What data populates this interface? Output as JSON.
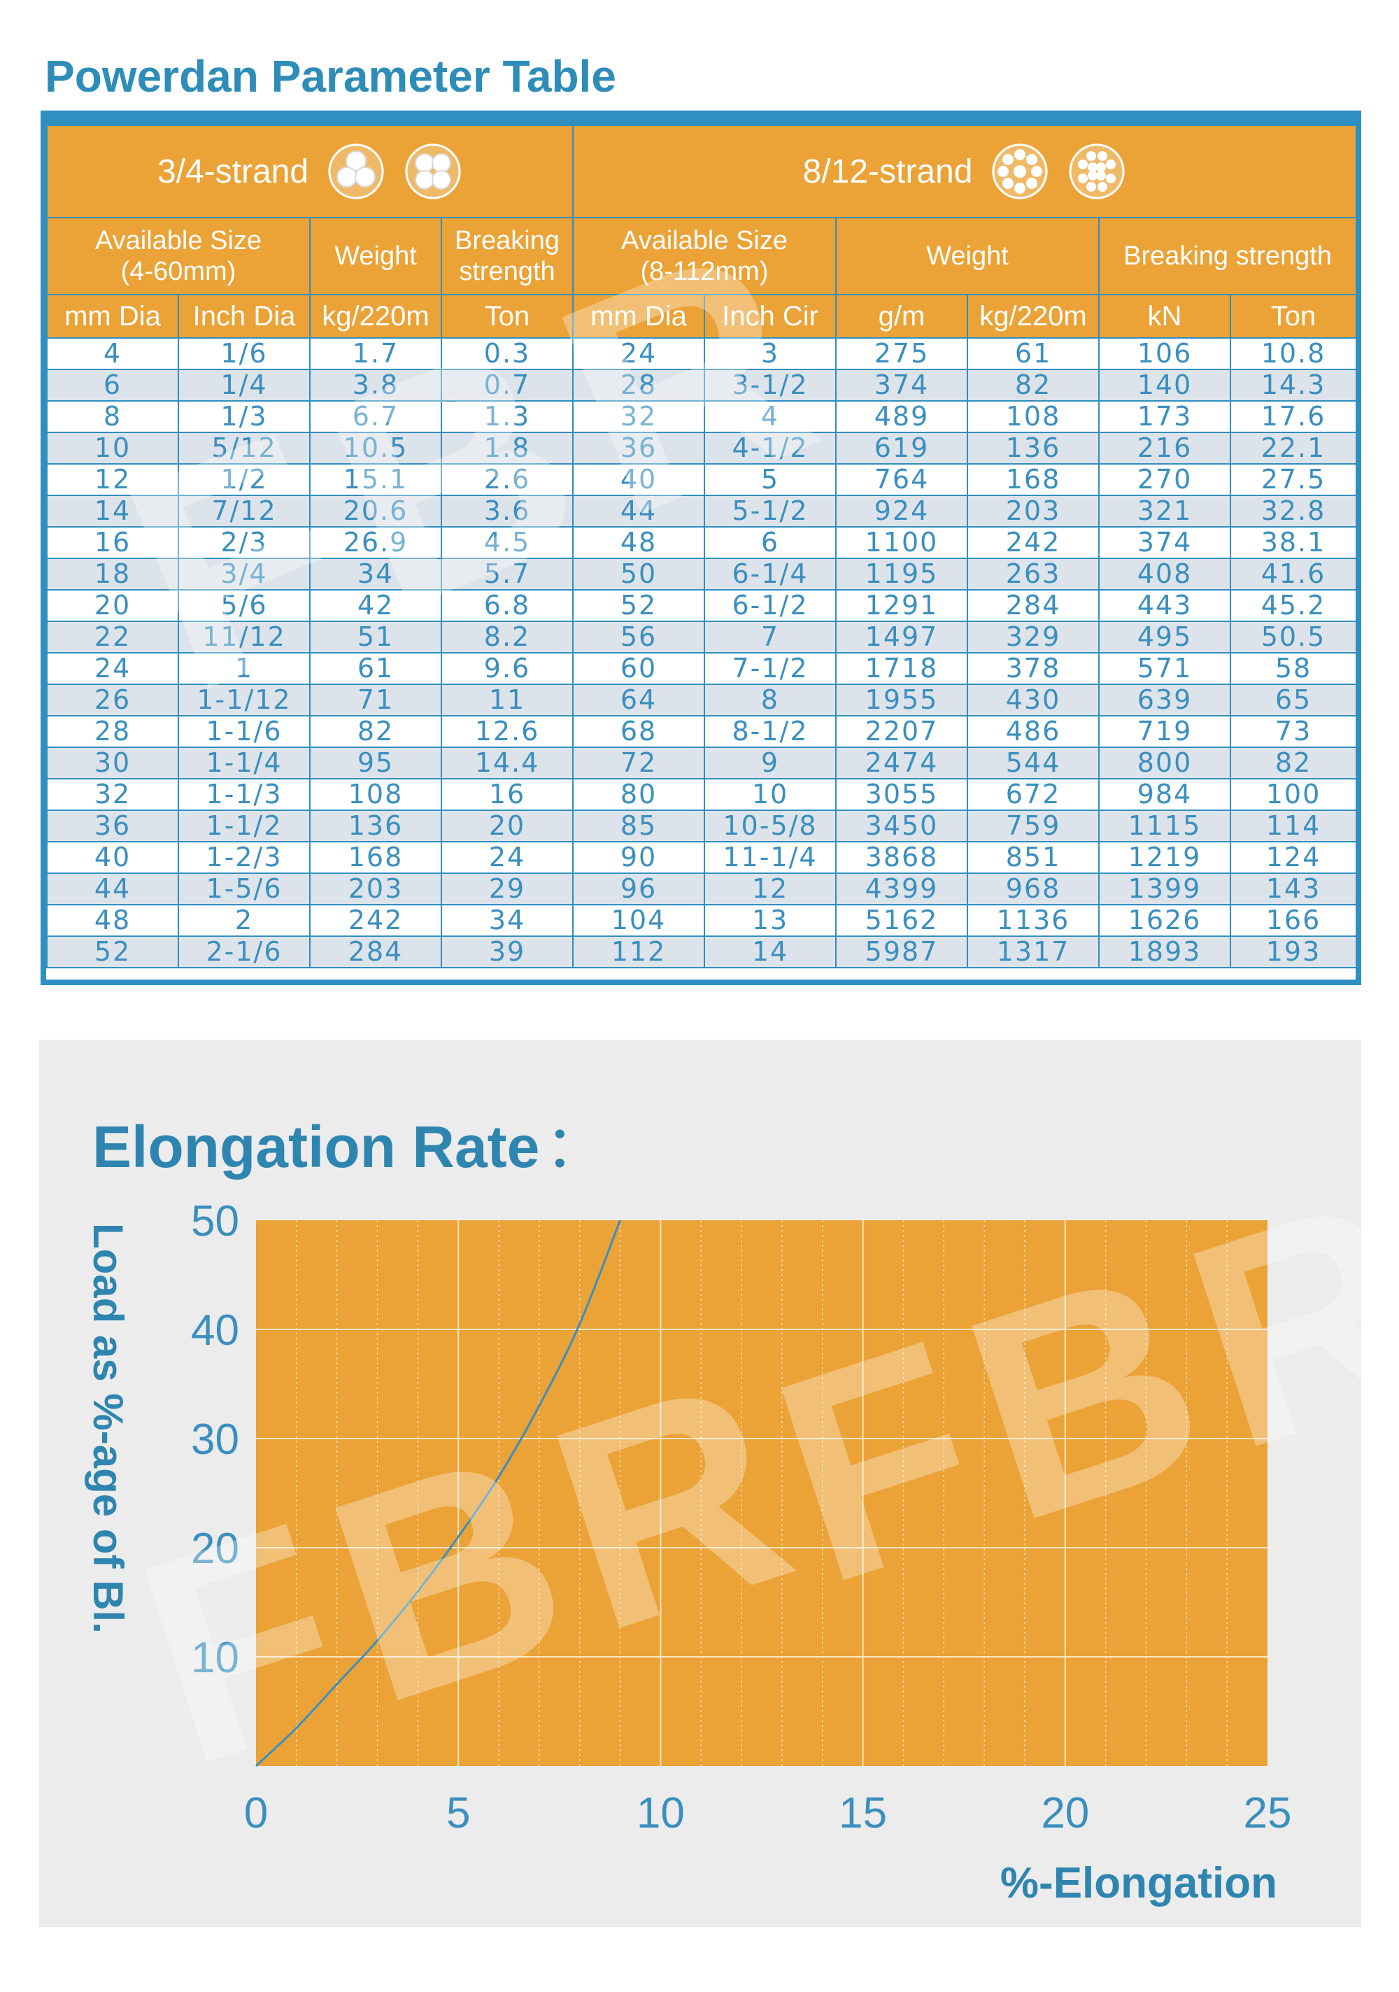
{
  "document": {
    "title": "Powerdan Parameter Table"
  },
  "table": {
    "group_left": "3/4-strand",
    "group_right": "8/12-strand",
    "subheaders": {
      "avail_size_left": "Available Size",
      "avail_size_left_range": "(4-60mm)",
      "weight_left": "Weight",
      "breaking_left": "Breaking strength",
      "avail_size_right": "Available Size",
      "avail_size_right_range": "(8-112mm)",
      "weight_right": "Weight",
      "breaking_right": "Breaking strength"
    },
    "units": [
      "mm Dia",
      "Inch Dia",
      "kg/220m",
      "Ton",
      "mm Dia",
      "Inch Cir",
      "g/m",
      "kg/220m",
      "kN",
      "Ton"
    ],
    "rows": [
      [
        "4",
        "1/6",
        "1.7",
        "0.3",
        "24",
        "3",
        "275",
        "61",
        "106",
        "10.8"
      ],
      [
        "6",
        "1/4",
        "3.8",
        "0.7",
        "28",
        "3-1/2",
        "374",
        "82",
        "140",
        "14.3"
      ],
      [
        "8",
        "1/3",
        "6.7",
        "1.3",
        "32",
        "4",
        "489",
        "108",
        "173",
        "17.6"
      ],
      [
        "10",
        "5/12",
        "10.5",
        "1.8",
        "36",
        "4-1/2",
        "619",
        "136",
        "216",
        "22.1"
      ],
      [
        "12",
        "1/2",
        "15.1",
        "2.6",
        "40",
        "5",
        "764",
        "168",
        "270",
        "27.5"
      ],
      [
        "14",
        "7/12",
        "20.6",
        "3.6",
        "44",
        "5-1/2",
        "924",
        "203",
        "321",
        "32.8"
      ],
      [
        "16",
        "2/3",
        "26.9",
        "4.5",
        "48",
        "6",
        "1100",
        "242",
        "374",
        "38.1"
      ],
      [
        "18",
        "3/4",
        "34",
        "5.7",
        "50",
        "6-1/4",
        "1195",
        "263",
        "408",
        "41.6"
      ],
      [
        "20",
        "5/6",
        "42",
        "6.8",
        "52",
        "6-1/2",
        "1291",
        "284",
        "443",
        "45.2"
      ],
      [
        "22",
        "11/12",
        "51",
        "8.2",
        "56",
        "7",
        "1497",
        "329",
        "495",
        "50.5"
      ],
      [
        "24",
        "1",
        "61",
        "9.6",
        "60",
        "7-1/2",
        "1718",
        "378",
        "571",
        "58"
      ],
      [
        "26",
        "1-1/12",
        "71",
        "11",
        "64",
        "8",
        "1955",
        "430",
        "639",
        "65"
      ],
      [
        "28",
        "1-1/6",
        "82",
        "12.6",
        "68",
        "8-1/2",
        "2207",
        "486",
        "719",
        "73"
      ],
      [
        "30",
        "1-1/4",
        "95",
        "14.4",
        "72",
        "9",
        "2474",
        "544",
        "800",
        "82"
      ],
      [
        "32",
        "1-1/3",
        "108",
        "16",
        "80",
        "10",
        "3055",
        "672",
        "984",
        "100"
      ],
      [
        "36",
        "1-1/2",
        "136",
        "20",
        "85",
        "10-5/8",
        "3450",
        "759",
        "1115",
        "114"
      ],
      [
        "40",
        "1-2/3",
        "168",
        "24",
        "90",
        "11-1/4",
        "3868",
        "851",
        "1219",
        "124"
      ],
      [
        "44",
        "1-5/6",
        "203",
        "29",
        "96",
        "12",
        "4399",
        "968",
        "1399",
        "143"
      ],
      [
        "48",
        "2",
        "242",
        "34",
        "104",
        "13",
        "5162",
        "1136",
        "1626",
        "166"
      ],
      [
        "52",
        "2-1/6",
        "284",
        "39",
        "112",
        "14",
        "5987",
        "1317",
        "1893",
        "193"
      ]
    ]
  },
  "watermark_text": "FBR",
  "colors": {
    "accent_blue": "#2e8db8",
    "header_orange": "#eba236",
    "chart_orange": "#eba236",
    "stripe": "#dde3ea"
  },
  "chart_data": {
    "type": "line",
    "title": "Elongation Rate",
    "title_suffix": "：",
    "xlabel": "%-Elongation",
    "ylabel": "Load as %-age of Bl.",
    "xlim": [
      0,
      25
    ],
    "ylim": [
      0,
      50
    ],
    "x_ticks": [
      "0",
      "5",
      "10",
      "15",
      "20",
      "25"
    ],
    "y_ticks": [
      "10",
      "20",
      "30",
      "40",
      "50"
    ],
    "grid": true,
    "series": [
      {
        "name": "Elongation",
        "x": [
          0,
          1,
          2,
          3,
          4,
          5,
          6,
          7,
          8,
          9
        ],
        "y": [
          0,
          3.5,
          7.5,
          11.5,
          16,
          21,
          26.5,
          33,
          40.5,
          50
        ]
      }
    ]
  }
}
